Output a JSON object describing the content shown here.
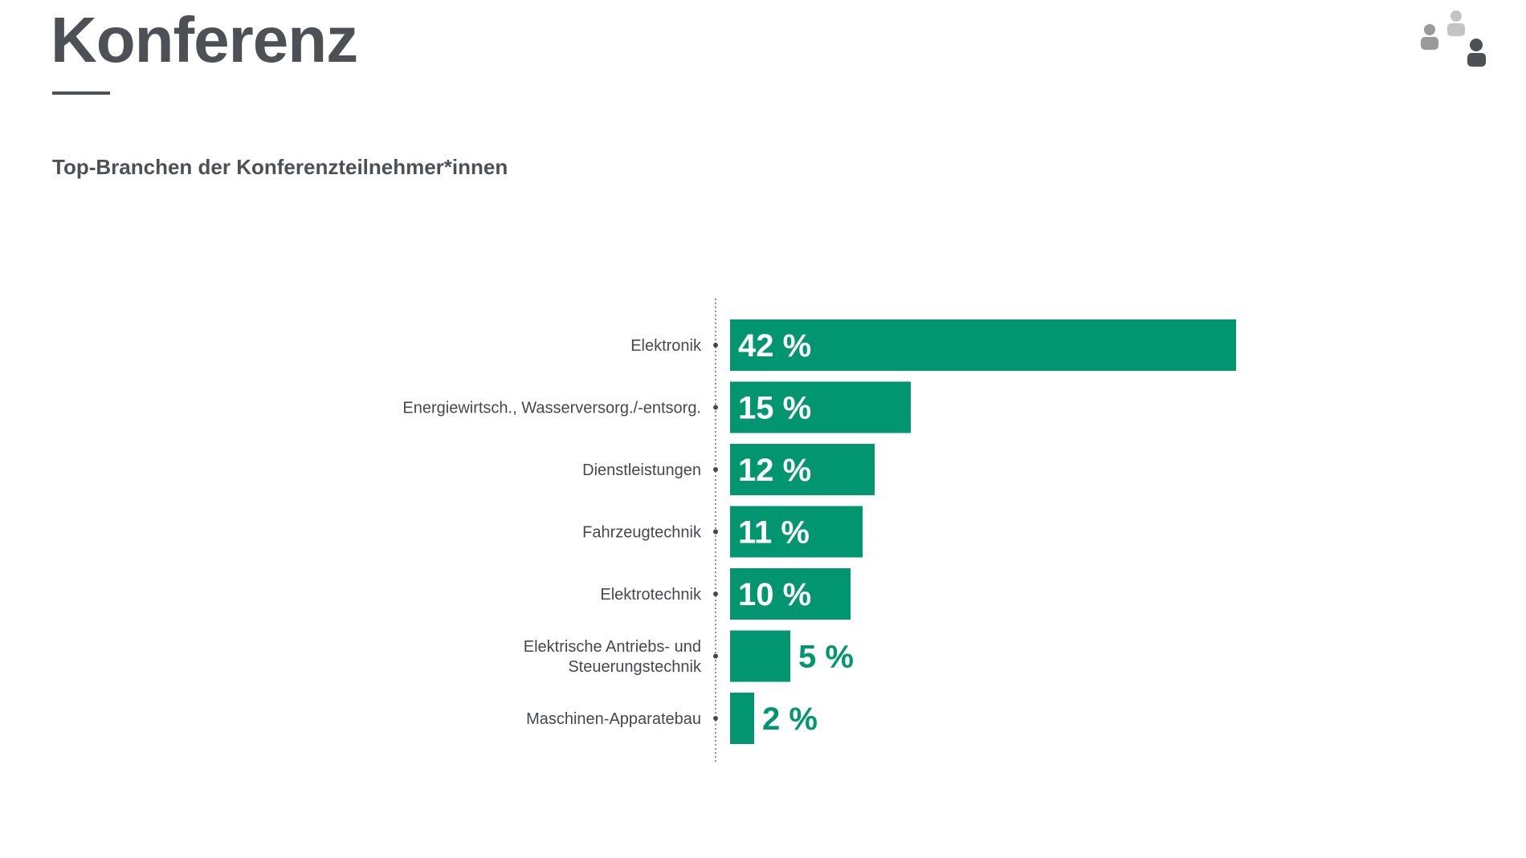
{
  "header": {
    "title": "Konferenz"
  },
  "logo": {
    "icon": "people-group-icon",
    "colors": [
      "#9a9a9a",
      "#c4c4c4",
      "#4d5155"
    ]
  },
  "colors": {
    "bar": "#019670",
    "text_dark": "#4d5155",
    "label_inside": "#ffffff",
    "label_outside": "#019670"
  },
  "chart_data": {
    "type": "bar",
    "orientation": "horizontal",
    "title": "Top-Branchen der Konferenzteilnehmer*innen",
    "categories": [
      [
        "Elektronik"
      ],
      [
        "Energiewirtsch., Wasserversorg./-entsorg."
      ],
      [
        "Dienstleistungen"
      ],
      [
        "Fahrzeugtechnik"
      ],
      [
        "Elektrotechnik"
      ],
      [
        "Elektrische Antriebs- und",
        "Steuerungstechnik"
      ],
      [
        "Maschinen-Apparatebau"
      ]
    ],
    "values": [
      42,
      15,
      12,
      11,
      10,
      5,
      2
    ],
    "value_labels": [
      "42 %",
      "15 %",
      "12 %",
      "11 %",
      "10 %",
      "5 %",
      "2 %"
    ],
    "unit": "%",
    "xlim": [
      0,
      42
    ],
    "grid": false,
    "legend": "none"
  }
}
